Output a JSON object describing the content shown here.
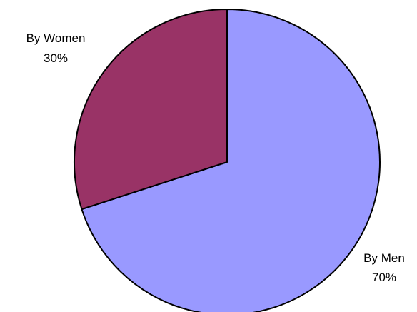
{
  "chart_data": {
    "type": "pie",
    "slices": [
      {
        "label": "By Men",
        "percent_label": "70%",
        "value": 70,
        "color": "#9999ff"
      },
      {
        "label": "By Women",
        "percent_label": "30%",
        "value": 30,
        "color": "#993366"
      }
    ],
    "start_angle_deg": 0,
    "direction": "clockwise",
    "stroke_color": "#000000"
  }
}
